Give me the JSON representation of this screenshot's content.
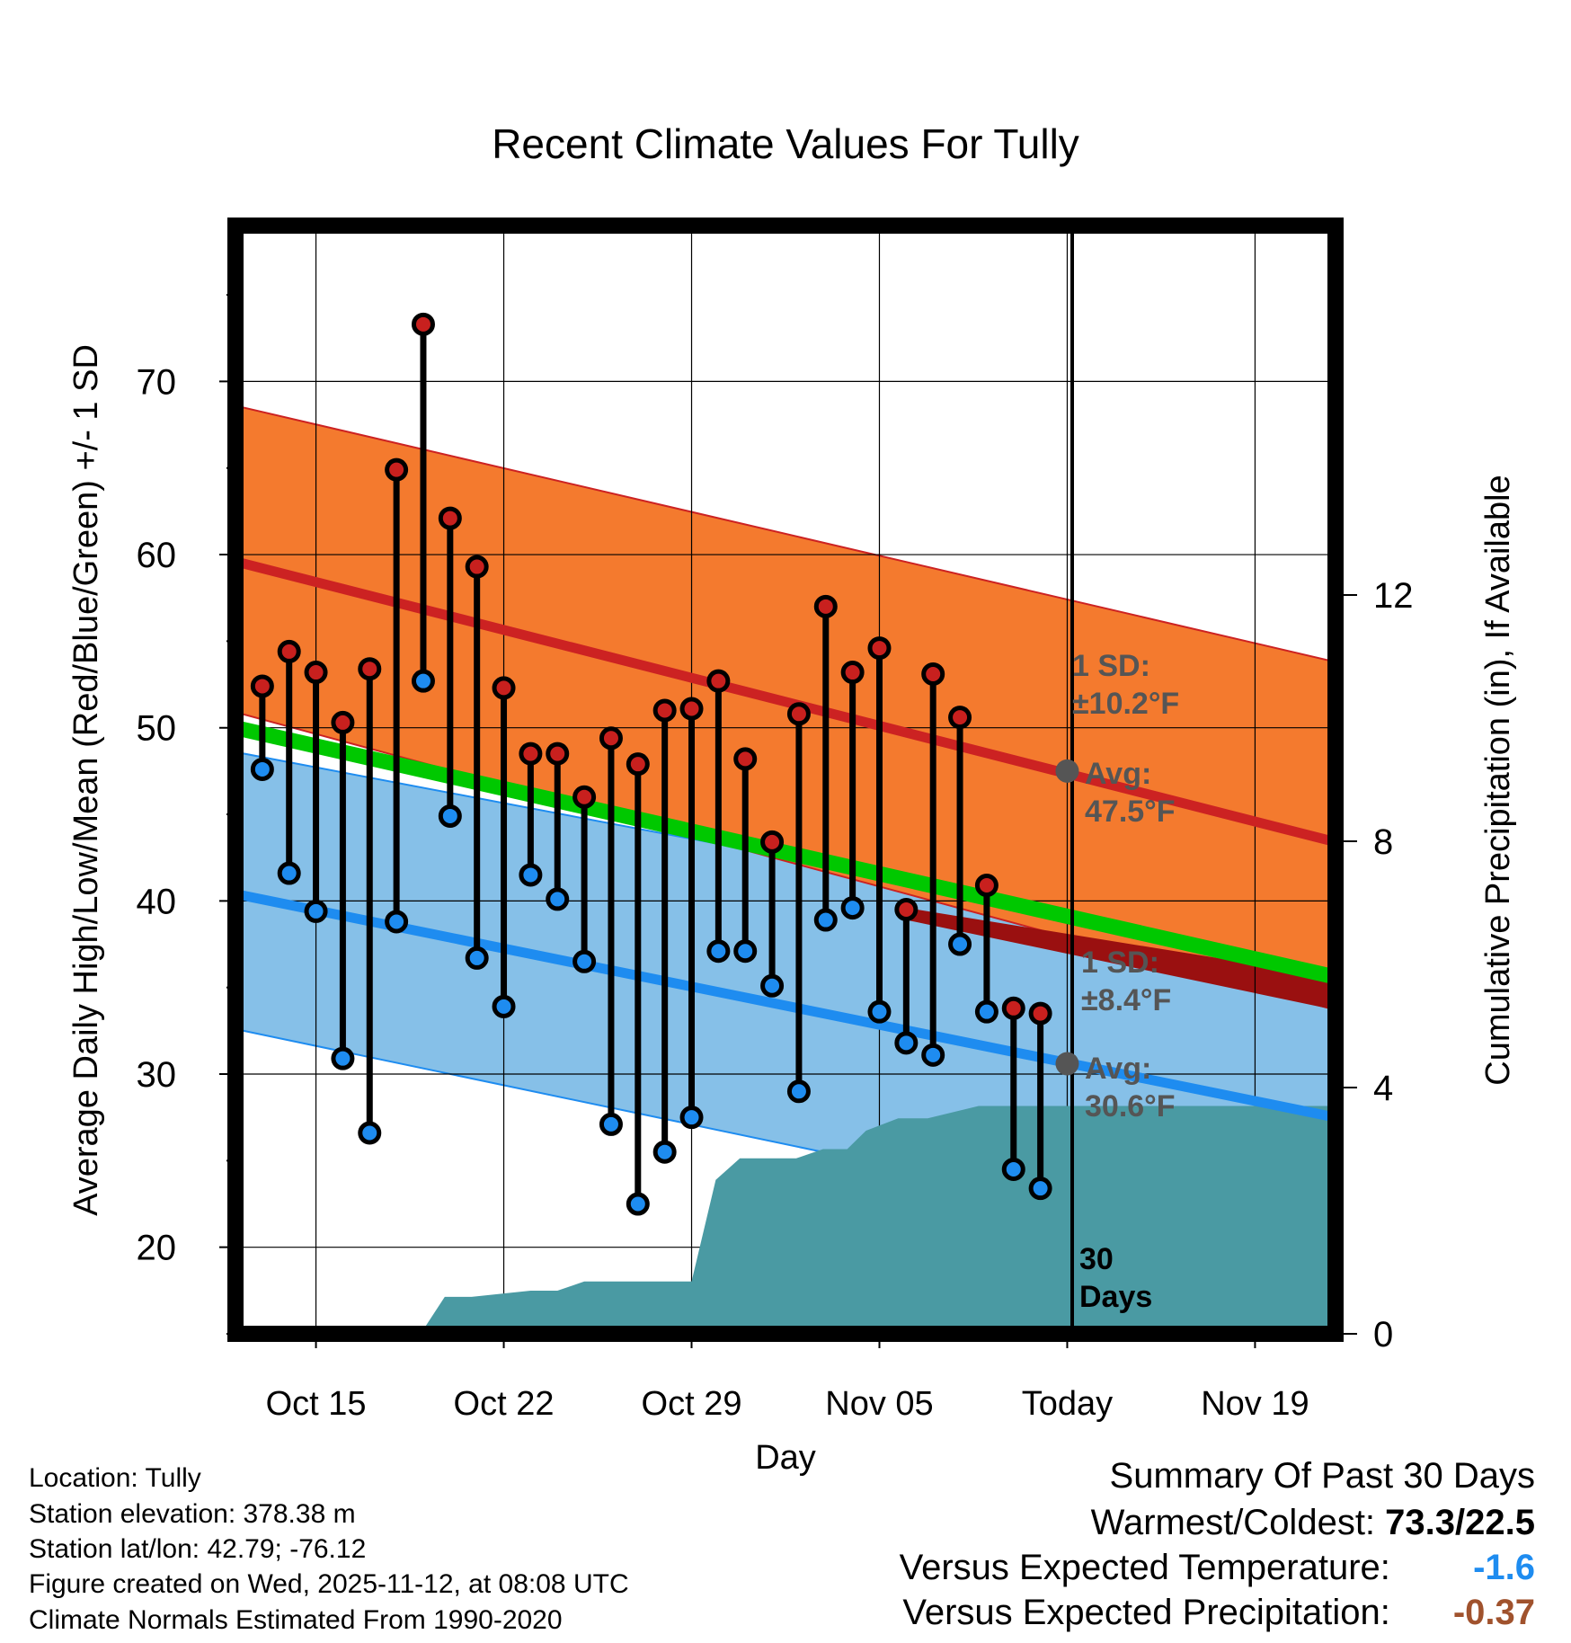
{
  "chart_data": {
    "type": "line",
    "title": "Recent Climate Values For Tully",
    "xlabel": "Day",
    "ylabel": "Average Daily High/Low/Mean (Red/Blue/Green) +/- 1 SD",
    "y2label": "Cumulative Precipitation (in), If Available",
    "ylim": [
      15,
      79
    ],
    "y2lim": [
      0,
      18
    ],
    "y_ticks": [
      "20",
      "30",
      "40",
      "50",
      "60",
      "70"
    ],
    "y2_ticks": [
      "0",
      "4",
      "8",
      "12"
    ],
    "x_tick_labels": [
      "Oct 15",
      "Oct 22",
      "Oct 29",
      "Nov 05",
      "Today",
      "Nov 19"
    ],
    "x_tick_days": [
      3,
      10,
      17,
      24,
      31,
      38
    ],
    "x_range_days": [
      0,
      41
    ],
    "observed_days": [
      1,
      2,
      3,
      4,
      5,
      6,
      7,
      8,
      9,
      10,
      11,
      12,
      13,
      14,
      15,
      16,
      17,
      18,
      19,
      20,
      21,
      22,
      23,
      24,
      25,
      26,
      27,
      28,
      29,
      30
    ],
    "series": [
      {
        "name": "Daily High",
        "color": "#c8201e",
        "values": [
          52.4,
          54.4,
          53.2,
          50.3,
          53.4,
          64.9,
          73.3,
          62.1,
          59.3,
          52.3,
          48.5,
          48.5,
          46.0,
          49.4,
          47.9,
          51.0,
          51.1,
          52.7,
          48.2,
          43.4,
          50.8,
          57.0,
          53.2,
          54.6,
          39.5,
          53.1,
          50.6,
          40.9,
          33.8,
          33.5
        ]
      },
      {
        "name": "Daily Low",
        "color": "#1e8cf0",
        "values": [
          47.6,
          41.6,
          39.4,
          30.9,
          26.6,
          38.8,
          52.7,
          44.9,
          36.7,
          33.9,
          41.5,
          40.1,
          36.5,
          27.1,
          22.5,
          25.5,
          27.5,
          37.1,
          37.1,
          35.1,
          29.0,
          38.9,
          39.6,
          33.6,
          31.8,
          31.1,
          37.5,
          33.6,
          24.5,
          23.4
        ]
      }
    ],
    "normals": {
      "high_avg": {
        "start": 59.6,
        "end": 43.4,
        "color": "#cc2222"
      },
      "high_sd_band": {
        "start_upper": 68.6,
        "start_lower": 50.9,
        "end_upper": 53.8,
        "end_lower": 33.7,
        "color": "#f47a2e"
      },
      "low_avg": {
        "start": 40.4,
        "end": 27.5,
        "color": "#1e8cf0"
      },
      "low_sd_band": {
        "start_upper": 48.6,
        "start_lower": 32.6,
        "end_upper": 36.5,
        "end_lower": 19.3,
        "color": "#86c0e8"
      },
      "mean_avg": {
        "start": 50.0,
        "end": 35.6,
        "color": "#00c800"
      }
    },
    "precip_cumulative": {
      "color": "#4a9aa3",
      "days": [
        0,
        6.9,
        7.8,
        8.8,
        11,
        12,
        13,
        16,
        17,
        17.9,
        18.8,
        20.9,
        21.9,
        22.8,
        23.5,
        24.7,
        25.8,
        27.7,
        28.7,
        29,
        31,
        40.8
      ],
      "values": [
        0,
        0,
        0.6,
        0.6,
        0.7,
        0.7,
        0.85,
        0.85,
        0.85,
        2.5,
        2.85,
        2.85,
        3.0,
        3.0,
        3.3,
        3.5,
        3.5,
        3.7,
        3.7,
        3.7,
        3.7,
        3.7
      ]
    },
    "annotations": {
      "high_sd": [
        "1 SD:",
        "±10.2°F"
      ],
      "high_avg": [
        "Avg:",
        "47.5°F"
      ],
      "low_sd": [
        "1 SD:",
        "±8.4°F"
      ],
      "low_avg": [
        "Avg:",
        "30.6°F"
      ],
      "window": [
        "30",
        "Days"
      ]
    },
    "today_high_avg": 47.5,
    "today_low_avg": 30.6
  },
  "info": {
    "location": "Location: Tully",
    "elevation": "Station elevation: 378.38 m",
    "latlon": "Station lat/lon: 42.79; -76.12",
    "created": "Figure created on Wed, 2025-11-12, at 08:08 UTC",
    "normals": "Climate Normals Estimated From 1990-2020"
  },
  "summary": {
    "title": "Summary Of Past 30 Days",
    "warmest_label": "Warmest/Coldest:",
    "warmest_value": "73.3/22.5",
    "temp_label": "Versus Expected Temperature:",
    "temp_value": "-1.6",
    "temp_color": "#1e8cf0",
    "precip_label": "Versus Expected Precipitation:",
    "precip_value": "-0.37",
    "precip_color": "#a0522d"
  }
}
